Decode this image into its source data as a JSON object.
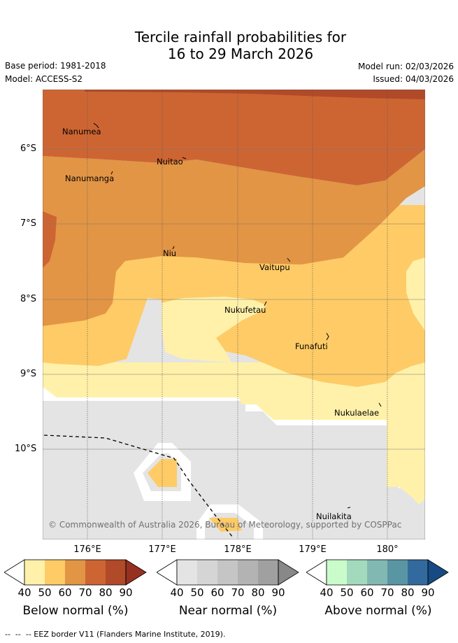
{
  "title_line1": "Tercile rainfall probabilities for",
  "title_line2": "16 to 29 March 2026",
  "base_period": "Base period: 1981-2018",
  "model": "Model: ACCESS-S2",
  "model_run": "Model run: 02/03/2026",
  "issued": "Issued: 04/03/2026",
  "lat_labels": [
    "6°S",
    "7°S",
    "8°S",
    "9°S",
    "10°S"
  ],
  "lon_labels": [
    "176°E",
    "177°E",
    "178°E",
    "179°E",
    "180°"
  ],
  "places": {
    "nanumea": "Nanumea",
    "nuitao": "Nuitao",
    "nanumanga": "Nanumanga",
    "niu": "Niu",
    "vaitupu": "Vaitupu",
    "nukufetau": "Nukufetau",
    "funafuti": "Funafuti",
    "nukulaelae": "Nukulaelae",
    "nuilakita": "Nuilakita"
  },
  "copyright": "© Commonwealth of Australia 2026, Bureau of Meteorology, supported by COSPPac",
  "colorbars": {
    "below": {
      "title": "Below normal (%)",
      "ticks": [
        "40",
        "50",
        "60",
        "70",
        "80",
        "90"
      ],
      "colors": [
        "#fff1aa",
        "#fecb66",
        "#e29545",
        "#cd6533",
        "#b04a28",
        "#963020"
      ]
    },
    "near": {
      "title": "Near normal (%)",
      "ticks": [
        "40",
        "50",
        "60",
        "70",
        "80",
        "90"
      ],
      "colors": [
        "#e4e4e4",
        "#d5d5d5",
        "#c5c5c5",
        "#b3b3b3",
        "#a0a0a0",
        "#888888"
      ]
    },
    "above": {
      "title": "Above normal (%)",
      "ticks": [
        "40",
        "50",
        "60",
        "70",
        "80",
        "90"
      ],
      "colors": [
        "#c9fcca",
        "#a3d9bd",
        "#82b8b2",
        "#5a95a3",
        "#336a9d",
        "#174a82"
      ]
    }
  },
  "map_colors": {
    "below_40": "#fff1aa",
    "below_50": "#fecb66",
    "below_60": "#e29545",
    "below_70": "#cd6533",
    "below_80": "#b04a28",
    "near_40": "#e4e4e4"
  },
  "eez_note": "--  --  -- EEZ border V11 (Flanders Marine Institute, 2019)."
}
